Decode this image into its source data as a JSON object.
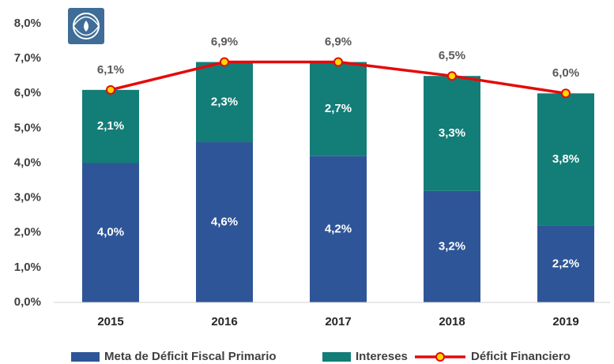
{
  "chart_data": {
    "type": "stacked_bar_line",
    "categories": [
      "2015",
      "2016",
      "2017",
      "2018",
      "2019"
    ],
    "series": [
      {
        "name": "Meta de Déficit Fiscal Primario",
        "color": "#2e5597",
        "kind": "bar",
        "values": [
          4.0,
          4.6,
          4.2,
          3.2,
          2.2
        ],
        "value_labels": [
          "4,0%",
          "4,6%",
          "4,2%",
          "3,2%",
          "2,2%"
        ]
      },
      {
        "name": "Intereses",
        "color": "#137d77",
        "kind": "bar",
        "values": [
          2.1,
          2.3,
          2.7,
          3.3,
          3.8
        ],
        "value_labels": [
          "2,1%",
          "2,3%",
          "2,7%",
          "3,3%",
          "3,8%"
        ]
      },
      {
        "name": "Déficit Financiero",
        "color": "#e50a0a",
        "marker_color": "#ffd800",
        "kind": "line",
        "values": [
          6.1,
          6.9,
          6.9,
          6.5,
          6.0
        ],
        "value_labels": [
          "6,1%",
          "6,9%",
          "6,9%",
          "6,5%",
          "6,0%"
        ]
      }
    ],
    "ylim": [
      0,
      8
    ],
    "yticks": [
      {
        "value": 0,
        "label": "0,0%"
      },
      {
        "value": 1,
        "label": "1,0%"
      },
      {
        "value": 2,
        "label": "2,0%"
      },
      {
        "value": 3,
        "label": "3,0%"
      },
      {
        "value": 4,
        "label": "4,0%"
      },
      {
        "value": 5,
        "label": "5,0%"
      },
      {
        "value": 6,
        "label": "6,0%"
      },
      {
        "value": 7,
        "label": "7,0%"
      },
      {
        "value": 8,
        "label": "8,0%"
      }
    ],
    "grid": false,
    "legend": "bottom"
  }
}
